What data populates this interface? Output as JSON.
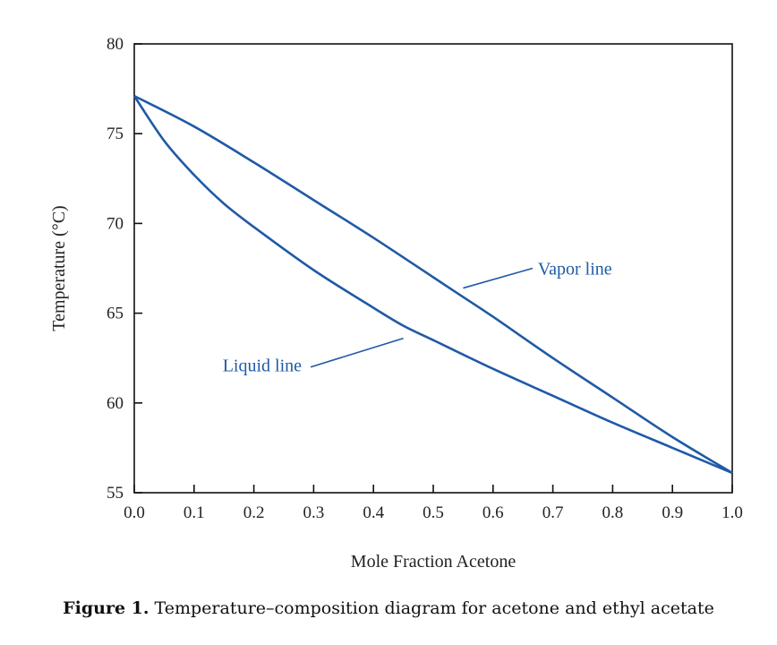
{
  "chart_data": {
    "type": "line",
    "title": "",
    "xlabel": "Mole Fraction Acetone",
    "ylabel": "Temperature (°C)",
    "xlim": [
      0.0,
      1.0
    ],
    "ylim": [
      55,
      80
    ],
    "grid": false,
    "x_ticks": [
      0.0,
      0.1,
      0.2,
      0.3,
      0.4,
      0.5,
      0.6,
      0.7,
      0.8,
      0.9,
      1.0
    ],
    "x_tick_labels": [
      "0.0",
      "0.1",
      "0.2",
      "0.3",
      "0.4",
      "0.5",
      "0.6",
      "0.7",
      "0.8",
      "0.9",
      "1.0"
    ],
    "y_ticks": [
      55,
      60,
      65,
      70,
      75,
      80
    ],
    "y_tick_labels": [
      "55",
      "60",
      "65",
      "70",
      "75",
      "80"
    ],
    "line_color": "#1f5aa6",
    "series": [
      {
        "name": "Vapor line",
        "x": [
          0.0,
          0.1,
          0.2,
          0.3,
          0.4,
          0.5,
          0.55,
          0.6,
          0.7,
          0.8,
          0.9,
          1.0
        ],
        "y": [
          77.1,
          75.4,
          73.4,
          71.3,
          69.2,
          67.0,
          65.9,
          64.8,
          62.5,
          60.3,
          58.1,
          56.1
        ]
      },
      {
        "name": "Liquid line",
        "x": [
          0.0,
          0.05,
          0.1,
          0.15,
          0.2,
          0.3,
          0.4,
          0.45,
          0.5,
          0.6,
          0.7,
          0.8,
          0.9,
          1.0
        ],
        "y": [
          77.1,
          74.6,
          72.7,
          71.1,
          69.8,
          67.4,
          65.3,
          64.3,
          63.5,
          61.9,
          60.4,
          58.9,
          57.5,
          56.1
        ]
      }
    ],
    "annotations": [
      {
        "text": "Vapor line",
        "x": 0.675,
        "y": 67.5,
        "arrow_to": [
          0.55,
          66.4
        ]
      },
      {
        "text": "Liquid line",
        "x": 0.28,
        "y": 62.1,
        "arrow_to": [
          0.45,
          63.6
        ]
      }
    ]
  },
  "caption": {
    "label": "Figure 1.",
    "text": "Temperature–composition diagram for acetone and ethyl acetate"
  }
}
